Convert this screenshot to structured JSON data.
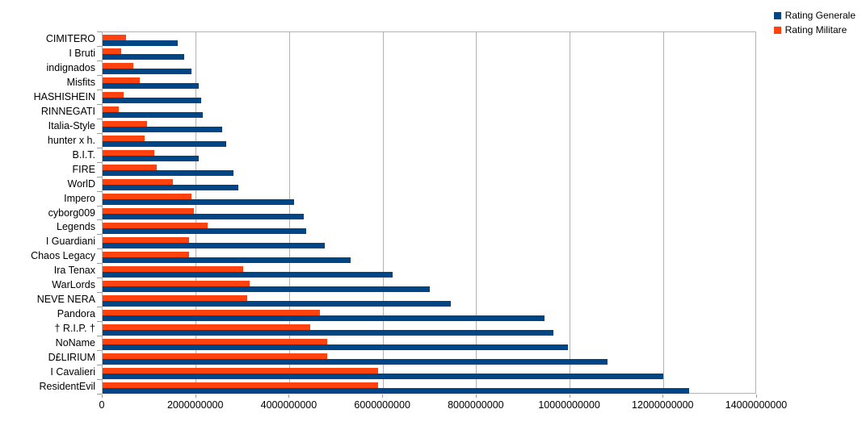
{
  "chart_data": {
    "type": "bar",
    "orientation": "horizontal",
    "title": "",
    "categories": [
      "CIMITERO",
      "I Bruti",
      "indignados",
      "Misfits",
      "HASHISHEIN",
      "RINNEGATI",
      "Italia-Style",
      "hunter x h.",
      "B.I.T.",
      "FIRE",
      "WorlD",
      "Impero",
      "cyborg009",
      "Legends",
      "I Guardiani",
      "Chaos Legacy",
      "Ira Tenax",
      "WarLords",
      "NEVE NERA",
      "Pandora",
      "† R.I.P. †",
      "NoName",
      "D£LIRIUM",
      "I Cavalieri",
      "ResidentEvil"
    ],
    "series": [
      {
        "name": "Rating Generale",
        "color": "#004586",
        "values": [
          1600000000,
          1750000000,
          1900000000,
          2050000000,
          2100000000,
          2150000000,
          2550000000,
          2650000000,
          2050000000,
          2800000000,
          2900000000,
          4100000000,
          4300000000,
          4350000000,
          4750000000,
          5300000000,
          6200000000,
          7000000000,
          7450000000,
          9450000000,
          9650000000,
          9950000000,
          10800000000,
          12000000000,
          12550000000
        ]
      },
      {
        "name": "Rating Militare",
        "color": "#FF420E",
        "values": [
          500000000,
          400000000,
          650000000,
          800000000,
          450000000,
          350000000,
          950000000,
          900000000,
          1100000000,
          1150000000,
          1500000000,
          1900000000,
          1950000000,
          2250000000,
          1850000000,
          1850000000,
          3000000000,
          3150000000,
          3100000000,
          4650000000,
          4450000000,
          4800000000,
          4800000000,
          5900000000,
          5900000000
        ]
      }
    ],
    "x_axis": {
      "max": 14000000000,
      "ticks": [
        "0",
        "2000000000",
        "4000000000",
        "6000000000",
        "8000000000",
        "10000000000",
        "12000000000",
        "14000000000"
      ]
    },
    "grid": true,
    "legend_position": "top-right"
  },
  "colors": {
    "grid": "#b3b3b3",
    "text": "#000000",
    "background": "#ffffff",
    "series_generale": "#004586",
    "series_militare": "#FF420E"
  }
}
